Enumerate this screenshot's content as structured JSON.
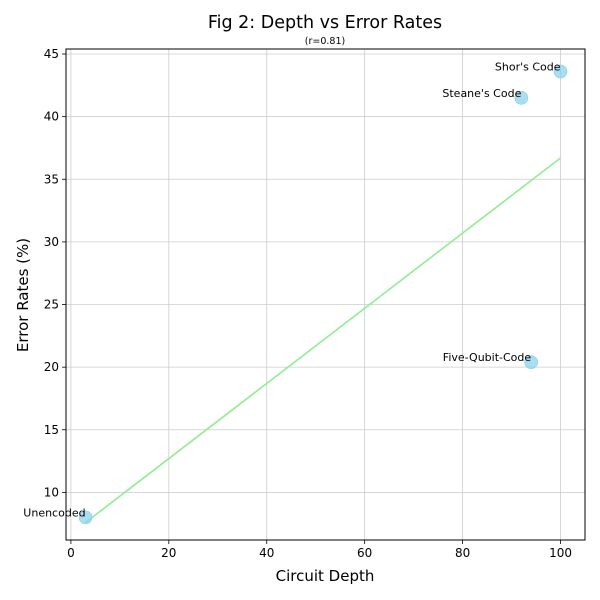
{
  "chart_data": {
    "type": "scatter",
    "title": "Fig 2: Depth vs Error Rates",
    "subtitle": "(r=0.81)",
    "xlabel": "Circuit Depth",
    "ylabel": "Error Rates (%)",
    "xlim": [
      -1,
      105
    ],
    "ylim": [
      6.2,
      45.4
    ],
    "xticks": [
      "0",
      "20",
      "40",
      "60",
      "80",
      "100"
    ],
    "xtick_values": [
      0,
      20,
      40,
      60,
      80,
      100
    ],
    "yticks": [
      "10",
      "15",
      "20",
      "25",
      "30",
      "35",
      "40",
      "45"
    ],
    "ytick_values": [
      10,
      15,
      20,
      25,
      30,
      35,
      40,
      45
    ],
    "grid": true,
    "points": [
      {
        "label": "Unencoded",
        "x": 3,
        "y": 8.0
      },
      {
        "label": "Five-Qubit-Code",
        "x": 94,
        "y": 20.4
      },
      {
        "label": "Steane's Code",
        "x": 92,
        "y": 41.5
      },
      {
        "label": "Shor's Code",
        "x": 100,
        "y": 43.6
      }
    ],
    "trendline": {
      "x": [
        3,
        100
      ],
      "y": [
        7.6,
        36.7
      ]
    },
    "colors": {
      "points": "#87ceeb",
      "trendline": "#90ee90",
      "grid": "#cccccc"
    }
  }
}
